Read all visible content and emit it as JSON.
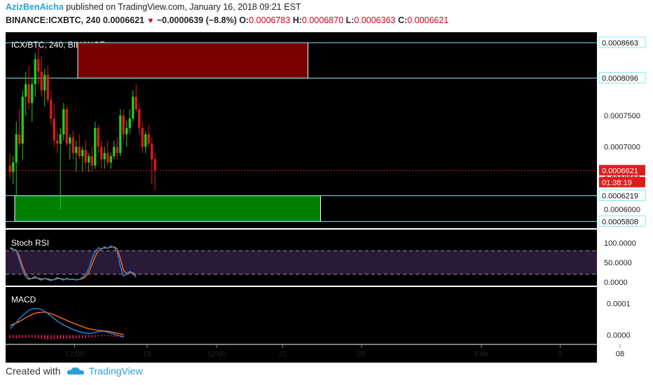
{
  "header": {
    "author": "AzizBenAicha",
    "published_text": " published on TradingView.com, January 16, 2018 09:21 EST",
    "symbol": "BINANCE:ICXBTC, 240",
    "last": "0.0006621",
    "change": "−0.0000639 (−8.8%)",
    "o_label": "O:",
    "o_value": "0.0006783",
    "h_label": "H:",
    "h_value": "0.0006870",
    "l_label": "L:",
    "l_value": "0.0006363",
    "c_label": "C:",
    "c_value": "0.0006621"
  },
  "footer": {
    "created_with": "Created with",
    "brand": "TradingView"
  },
  "colors": {
    "up": "#1fd01f",
    "down": "#e01b1b",
    "supply_zone": "#7a0000",
    "demand_zone": "#008000",
    "level_line": "#7fe8f0",
    "stoch_k": "#1e88e5",
    "stoch_d": "#ff6a1a",
    "macd_line": "#1e88e5",
    "signal_line": "#ff6a1a",
    "hist": "#e91e63"
  },
  "chart_data": {
    "type": "candlestick",
    "title": "ICX/BTC, 240, BINANCE",
    "price_axis_labels": [
      "0.0007500",
      "0.0007000",
      "0.0006500",
      "0.0006000"
    ],
    "levels": [
      {
        "price": 0.0008663,
        "label": "0.0008663"
      },
      {
        "price": 0.0008096,
        "label": "0.0008096"
      },
      {
        "price": 0.0006219,
        "label": "0.0006219"
      },
      {
        "price": 0.0005808,
        "label": "0.0005808"
      }
    ],
    "last_price": {
      "price": 0.0006621,
      "label": "0.0006621",
      "countdown": "01:38:19"
    },
    "zones": [
      {
        "name": "supply",
        "from_bar": 22,
        "to_bar": 95,
        "top": 0.0008663,
        "bottom": 0.0008096
      },
      {
        "name": "demand",
        "from_bar": 2,
        "to_bar": 99,
        "top": 0.0006219,
        "bottom": 0.0005808
      }
    ],
    "x_ticks": [
      {
        "bar": 21,
        "label": "12:00"
      },
      {
        "bar": 44,
        "label": "15"
      },
      {
        "bar": 66,
        "label": "12:00"
      },
      {
        "bar": 87,
        "label": "22"
      },
      {
        "bar": 112,
        "label": "26"
      },
      {
        "bar": 150,
        "label": "Feb"
      },
      {
        "bar": 175,
        "label": "5"
      },
      {
        "bar": 194,
        "label": "08"
      }
    ],
    "candles": [
      [
        0.00067,
        0.00069,
        0.00065,
        0.00066
      ],
      [
        0.00066,
        0.000685,
        0.00064,
        0.000675
      ],
      [
        0.000675,
        0.00074,
        0.00062,
        0.00072
      ],
      [
        0.00072,
        0.00076,
        0.0007,
        0.000705
      ],
      [
        0.000705,
        0.00079,
        0.00068,
        0.00078
      ],
      [
        0.00078,
        0.00082,
        0.00075,
        0.0008
      ],
      [
        0.0008,
        0.00083,
        0.00076,
        0.00077
      ],
      [
        0.00077,
        0.00081,
        0.00074,
        0.0008
      ],
      [
        0.0008,
        0.00085,
        0.00078,
        0.00084
      ],
      [
        0.00084,
        0.00086,
        0.0008,
        0.00082
      ],
      [
        0.00082,
        0.000845,
        0.00078,
        0.00079
      ],
      [
        0.00079,
        0.000825,
        0.000765,
        0.000815
      ],
      [
        0.000815,
        0.00083,
        0.00077,
        0.000775
      ],
      [
        0.000775,
        0.00079,
        0.000735,
        0.000745
      ],
      [
        0.000745,
        0.00077,
        0.0007,
        0.00071
      ],
      [
        0.00071,
        0.000725,
        0.00069,
        0.000705
      ],
      [
        0.000705,
        0.00073,
        0.0006,
        0.00072
      ],
      [
        0.00072,
        0.00077,
        0.00071,
        0.00076
      ],
      [
        0.00076,
        0.000765,
        0.0007,
        0.000705
      ],
      [
        0.000705,
        0.00072,
        0.00068,
        0.000715
      ],
      [
        0.000715,
        0.000725,
        0.00068,
        0.00069
      ],
      [
        0.00069,
        0.00071,
        0.00066,
        0.0007
      ],
      [
        0.0007,
        0.00072,
        0.00068,
        0.000685
      ],
      [
        0.000685,
        0.0007,
        0.00066,
        0.000695
      ],
      [
        0.000695,
        0.00071,
        0.000665,
        0.000675
      ],
      [
        0.000675,
        0.00069,
        0.00066,
        0.000685
      ],
      [
        0.000685,
        0.0007,
        0.00066,
        0.00067
      ],
      [
        0.00067,
        0.00074,
        0.000665,
        0.00073
      ],
      [
        0.00073,
        0.000735,
        0.00069,
        0.0007
      ],
      [
        0.0007,
        0.00071,
        0.000665,
        0.00068
      ],
      [
        0.00068,
        0.0007,
        0.000665,
        0.00069
      ],
      [
        0.00069,
        0.00071,
        0.00067,
        0.000675
      ],
      [
        0.000675,
        0.00069,
        0.000665,
        0.000685
      ],
      [
        0.000685,
        0.00071,
        0.00068,
        0.0007
      ],
      [
        0.0007,
        0.000715,
        0.00068,
        0.00069
      ],
      [
        0.00069,
        0.00076,
        0.000685,
        0.00075
      ],
      [
        0.00075,
        0.00076,
        0.00071,
        0.00072
      ],
      [
        0.00072,
        0.00074,
        0.0007,
        0.00073
      ],
      [
        0.00073,
        0.00076,
        0.00072,
        0.000745
      ],
      [
        0.000745,
        0.00079,
        0.00074,
        0.00078
      ],
      [
        0.00078,
        0.0008,
        0.000755,
        0.00076
      ],
      [
        0.00076,
        0.00077,
        0.00072,
        0.00073
      ],
      [
        0.00073,
        0.00074,
        0.00069,
        0.0007
      ],
      [
        0.0007,
        0.000725,
        0.00069,
        0.00072
      ],
      [
        0.00072,
        0.000735,
        0.0007,
        0.000705
      ],
      [
        0.000705,
        0.000715,
        0.00064,
        0.00068
      ],
      [
        0.00068,
        0.00069,
        0.00063,
        0.000662
      ]
    ],
    "stoch_rsi": {
      "label": "Stoch RSI",
      "axis_labels": [
        "100.0000",
        "50.0000",
        "0.0000"
      ],
      "k": [
        88,
        85,
        80,
        55,
        30,
        12,
        6,
        10,
        15,
        8,
        5,
        10,
        6,
        4,
        7,
        12,
        8,
        5,
        10,
        6,
        8,
        5,
        7,
        12,
        20,
        35,
        60,
        78,
        88,
        84,
        90,
        86,
        92,
        88,
        78,
        40,
        15,
        20,
        28,
        22,
        12
      ],
      "d": [
        85,
        84,
        82,
        65,
        40,
        20,
        10,
        9,
        11,
        10,
        8,
        9,
        8,
        6,
        6,
        9,
        9,
        7,
        8,
        7,
        7,
        6,
        7,
        9,
        14,
        25,
        45,
        65,
        80,
        86,
        87,
        87,
        89,
        90,
        85,
        60,
        30,
        22,
        24,
        24,
        18
      ]
    },
    "macd": {
      "label": "MACD",
      "axis_labels": [
        "0.0001",
        "0.0000"
      ],
      "macd_line": [
        2e-05,
        3e-05,
        4e-05,
        5.2e-05,
        6.2e-05,
        7e-05,
        7.8e-05,
        8.2e-05,
        8.4e-05,
        8.3e-05,
        8e-05,
        7.5e-05,
        6.8e-05,
        6e-05,
        5.2e-05,
        4.4e-05,
        3.8e-05,
        3.2e-05,
        2.7e-05,
        2.2e-05,
        1.8e-05,
        1.4e-05,
        1.1e-05,
        8e-06,
        6e-06,
        5e-06,
        6e-06,
        8e-06,
        1.1e-05,
        1.2e-05,
        1.1e-05,
        9e-06,
        6e-06,
        3e-06,
        0.0,
        -3e-06,
        -6e-06
      ],
      "signal_line": [
        3e-05,
        3.4e-05,
        3.8e-05,
        4.3e-05,
        4.9e-05,
        5.5e-05,
        6e-05,
        6.5e-05,
        6.9e-05,
        7.1e-05,
        7.2e-05,
        7.2e-05,
        7e-05,
        6.8e-05,
        6.4e-05,
        6e-05,
        5.5e-05,
        5.1e-05,
        4.6e-05,
        4.2e-05,
        3.8e-05,
        3.4e-05,
        3e-05,
        2.7e-05,
        2.3e-05,
        2e-05,
        1.8e-05,
        1.6e-05,
        1.5e-05,
        1.4e-05,
        1.3e-05,
        1.2e-05,
        1e-05,
        8e-06,
        6e-06,
        4e-06,
        2e-06
      ],
      "histogram": [
        -1e-05,
        -1e-05,
        -1.1e-05,
        -1e-05,
        -9e-06,
        -9e-06,
        -8e-06,
        -8e-06,
        -9e-06,
        -1.1e-05,
        -1.2e-05,
        -1.3e-05,
        -1.4e-05,
        -1.4e-05,
        -1.3e-05,
        -1.3e-05,
        -1.2e-05,
        -1.2e-05,
        -1.1e-05,
        -1.1e-05,
        -1.1e-05,
        -1e-05,
        -1e-05,
        -1e-05,
        -9e-06,
        -8e-06,
        -7e-06,
        -6e-06,
        -5e-06,
        -4e-06,
        -3e-06,
        -3e-06,
        -4e-06,
        -5e-06,
        -6e-06,
        -7e-06,
        -8e-06
      ]
    }
  }
}
